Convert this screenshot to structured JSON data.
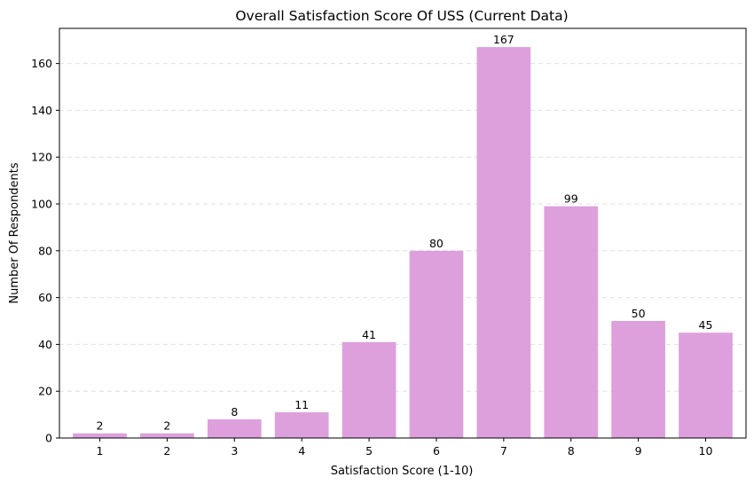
{
  "chart_data": {
    "type": "bar",
    "title": "Overall Satisfaction Score Of USS (Current Data)",
    "xlabel": "Satisfaction Score (1-10)",
    "ylabel": "Number Of Respondents",
    "categories": [
      "1",
      "2",
      "3",
      "4",
      "5",
      "6",
      "7",
      "8",
      "9",
      "10"
    ],
    "values": [
      2,
      2,
      8,
      11,
      41,
      80,
      167,
      99,
      50,
      45
    ],
    "ylim": [
      0,
      175
    ],
    "yticks": [
      0,
      20,
      40,
      60,
      80,
      100,
      120,
      140,
      160
    ],
    "grid": "y-dashed",
    "bar_color": "#dda0dd",
    "grid_color": "#e0e0e0",
    "data_labels": true
  }
}
